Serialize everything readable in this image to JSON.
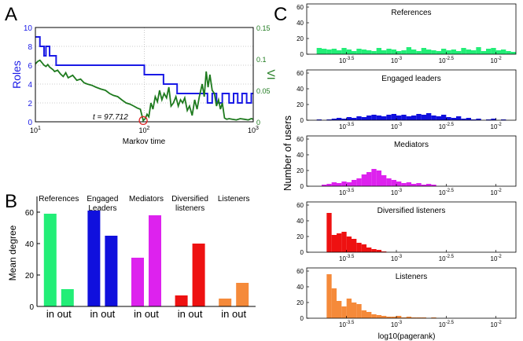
{
  "colors": {
    "roles": "#1a1ae6",
    "vi": "#1e7a1e",
    "references": "#22ee77",
    "engaged_leaders": "#1010dd",
    "mediators": "#dd22ee",
    "diversified_listeners": "#ee1111",
    "listeners": "#f58a3a",
    "marker": "#dd2222",
    "axis": "#000000",
    "grid": "#bbbbbb"
  },
  "chart_data": [
    {
      "panel": "A",
      "type": "line",
      "xlabel": "Markov time",
      "ylabel_left": "Roles",
      "ylabel_right": "VI",
      "xscale": "log",
      "xlim": [
        10,
        1000
      ],
      "x_ticks": [
        "10",
        "10",
        "10"
      ],
      "x_tick_exponents": [
        "1",
        "2",
        "3"
      ],
      "ylim_left": [
        0,
        10
      ],
      "left_ticks": [
        "0",
        "2",
        "4",
        "6",
        "8",
        "10"
      ],
      "ylim_right": [
        0,
        0.15
      ],
      "right_ticks": [
        "0",
        "0.05",
        "0.1",
        "0.15"
      ],
      "grid": "dotted",
      "annotation": "t = 97.712",
      "annotation_x": 97.712,
      "series": [
        {
          "name": "Roles",
          "axis": "left",
          "step": true,
          "x": [
            10,
            10.8,
            11,
            11.5,
            12,
            12.5,
            13.5,
            14.5,
            15.5,
            17,
            95,
            100,
            145,
            150,
            160,
            200,
            370,
            380,
            410,
            420,
            450,
            460,
            500,
            520,
            560,
            600,
            640,
            660,
            700,
            720,
            760,
            790,
            840,
            870,
            920,
            960,
            1000
          ],
          "values": [
            9,
            9,
            8,
            8,
            7,
            8,
            7,
            7,
            6,
            6,
            6,
            5,
            5,
            4,
            4,
            3,
            3,
            2,
            2,
            3,
            3,
            2,
            2,
            3,
            3,
            2,
            2,
            3,
            3,
            2,
            2,
            3,
            3,
            2,
            2,
            3,
            3
          ]
        },
        {
          "name": "VI",
          "axis": "right",
          "step": false,
          "x": [
            10,
            10.5,
            11,
            11.5,
            12,
            12.5,
            13,
            13.5,
            14,
            14.5,
            15,
            16,
            17,
            18,
            19,
            20,
            22,
            24,
            26,
            28,
            30,
            33,
            36,
            40,
            44,
            48,
            52,
            57,
            62,
            68,
            74,
            80,
            86,
            92,
            97.7,
            102,
            106,
            110,
            115,
            120,
            126,
            132,
            138,
            145,
            152,
            160,
            168,
            176,
            185,
            195,
            205,
            215,
            225,
            235,
            248,
            260,
            275,
            290,
            305,
            320,
            340,
            355,
            370,
            385,
            400,
            420,
            440,
            460,
            480,
            500,
            520,
            545,
            570,
            600,
            640,
            700,
            760,
            830,
            900,
            960,
            1000
          ],
          "values": [
            0.092,
            0.096,
            0.098,
            0.094,
            0.09,
            0.088,
            0.091,
            0.087,
            0.085,
            0.083,
            0.08,
            0.082,
            0.076,
            0.072,
            0.078,
            0.07,
            0.074,
            0.066,
            0.068,
            0.062,
            0.06,
            0.058,
            0.055,
            0.052,
            0.05,
            0.045,
            0.042,
            0.04,
            0.035,
            0.03,
            0.028,
            0.025,
            0.022,
            0.02,
            0.002,
            0.005,
            0.012,
            0.008,
            0.03,
            0.02,
            0.04,
            0.032,
            0.05,
            0.035,
            0.045,
            0.038,
            0.055,
            0.025,
            0.03,
            0.04,
            0.025,
            0.035,
            0.03,
            0.038,
            0.018,
            0.025,
            0.01,
            0.035,
            0.02,
            0.04,
            0.06,
            0.04,
            0.08,
            0.055,
            0.075,
            0.05,
            0.045,
            0.025,
            0.035,
            0.02,
            0.03,
            0.006,
            0.004,
            0.005,
            0.004,
            0.003,
            0.005,
            0.004,
            0.003,
            0.005,
            0.004
          ]
        }
      ]
    },
    {
      "panel": "B",
      "type": "bar",
      "ylabel": "Mean degree",
      "ylim": [
        0,
        70
      ],
      "y_ticks": [
        "0",
        "20",
        "40",
        "60"
      ],
      "groups": [
        {
          "label": "References",
          "in": 59,
          "out": 11,
          "color_key": "references",
          "tick_label": "in out"
        },
        {
          "label": "Engaged Leaders",
          "in": 61,
          "out": 45,
          "color_key": "engaged_leaders",
          "tick_label": "in out"
        },
        {
          "label": "Mediators",
          "in": 31,
          "out": 58,
          "color_key": "mediators",
          "tick_label": "in out"
        },
        {
          "label": "Diversified listeners",
          "in": 7,
          "out": 40,
          "color_key": "diversified_listeners",
          "tick_label": "in out"
        },
        {
          "label": "Listeners",
          "in": 5,
          "out": 15,
          "color_key": "listeners",
          "tick_label": "in out"
        }
      ]
    },
    {
      "panel": "C",
      "type": "bar",
      "xlabel": "log10(pagerank)",
      "ylabel": "Number of users",
      "xscale": "log",
      "xlim_exp": [
        -3.9,
        -1.8
      ],
      "x_tick_exponents": [
        "-3.5",
        "-3",
        "-2.5",
        "-2"
      ],
      "ylim": [
        0,
        60
      ],
      "y_ticks": [
        "0",
        "20",
        "40",
        "60"
      ],
      "bin_width_exp": 0.05,
      "subplots": [
        {
          "title": "References",
          "color_key": "references",
          "bins_start_exp": -3.8,
          "counts": [
            8,
            7,
            6,
            7,
            5,
            8,
            6,
            4,
            7,
            6,
            5,
            4,
            8,
            5,
            7,
            6,
            4,
            5,
            9,
            6,
            4,
            8,
            6,
            5,
            4,
            7,
            5,
            6,
            4,
            8,
            6,
            5,
            9,
            4,
            7,
            8,
            5,
            6,
            4,
            3
          ]
        },
        {
          "title": "Engaged leaders",
          "color_key": "engaged_leaders",
          "bins_start_exp": -3.8,
          "counts": [
            1,
            0,
            1,
            2,
            3,
            2,
            4,
            3,
            5,
            4,
            6,
            7,
            6,
            5,
            7,
            8,
            6,
            7,
            5,
            6,
            8,
            7,
            9,
            6,
            5,
            7,
            4,
            3,
            5,
            2,
            3,
            1,
            2,
            0,
            1,
            2,
            0,
            1
          ]
        },
        {
          "title": "Mediators",
          "color_key": "mediators",
          "bins_start_exp": -3.8,
          "counts": [
            0,
            2,
            3,
            5,
            4,
            6,
            5,
            8,
            10,
            15,
            18,
            22,
            20,
            14,
            10,
            8,
            6,
            4,
            5,
            3,
            4,
            2,
            3,
            2
          ]
        },
        {
          "title": "Diversified listeners",
          "color_key": "diversified_listeners",
          "bins_start_exp": -3.7,
          "counts": [
            50,
            22,
            24,
            26,
            20,
            17,
            12,
            10,
            6,
            4,
            3,
            1
          ]
        },
        {
          "title": "Listeners",
          "color_key": "listeners",
          "bins_start_exp": -3.7,
          "counts": [
            56,
            38,
            22,
            15,
            25,
            20,
            18,
            10,
            8,
            5,
            4,
            3,
            2,
            2,
            3,
            1,
            2,
            1,
            1,
            1,
            0,
            1
          ]
        }
      ]
    }
  ],
  "panel_letters": [
    "A",
    "B",
    "C"
  ]
}
